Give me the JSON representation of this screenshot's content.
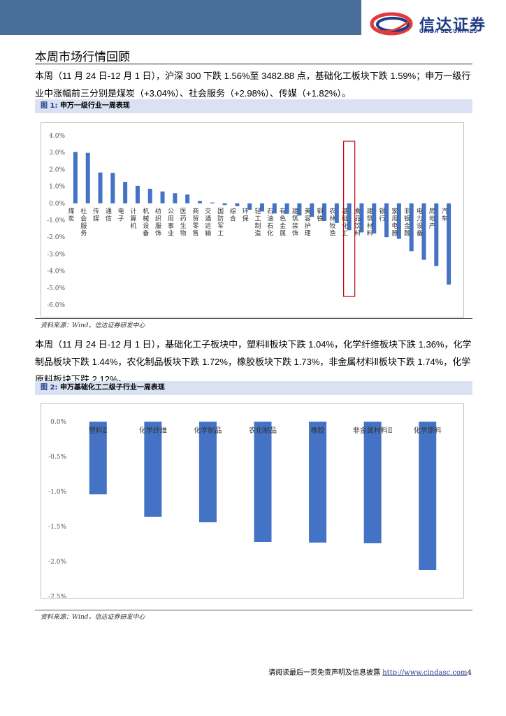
{
  "header": {
    "logo_cn": "信达证券",
    "logo_en": "CINDA SECURITIES",
    "colors": {
      "band": "#4a6e9a",
      "logo_blue": "#1f3b86",
      "logo_red": "#e03a3e"
    }
  },
  "section_title": "本周市场行情回顾",
  "paragraph1": "本周（11 月 24 日-12 月 1 日），沪深 300 下跌 1.56%至 3482.88 点，基础化工板块下跌 1.59%；申万一级行业中涨幅前三分别是煤炭（+3.04%）、社会服务（+2.98%）、传媒（+1.82%）。",
  "figure1": {
    "label": "图 1:",
    "title": "申万一级行业一周表现",
    "source": "资料来源：Wind，信达证券研发中心"
  },
  "paragraph2": "本周（11 月 24 日-12 月 1 日），基础化工子板块中，塑料Ⅱ板块下跌 1.04%，化学纤维板块下跌 1.36%，化学制品板块下跌 1.44%，农化制品板块下跌 1.72%，橡胶板块下跌 1.73%，非金属材料Ⅱ板块下跌 1.74%，化学原料板块下跌 2.12%。",
  "figure2": {
    "label": "图 2:",
    "title": "申万基础化工二级子行业一周表现",
    "source": "资料来源：Wind，信达证券研发中心"
  },
  "footer": {
    "text": "请阅读最后一页免责声明及信息披露",
    "url": "http://www.cindasc.com",
    "page": "4"
  },
  "chart_data": [
    {
      "type": "bar",
      "title": "申万一级行业一周表现",
      "categories": [
        "煤炭",
        "社会服务",
        "传媒",
        "通信",
        "电子",
        "计算机",
        "机械设备",
        "纺织服饰",
        "公用事业",
        "医药生物",
        "商贸零售",
        "交通运输",
        "国防军工",
        "综合",
        "环保",
        "轻工制造",
        "石油石化",
        "有色金属",
        "建筑装饰",
        "美容护理",
        "钢铁",
        "农林牧渔",
        "基础化工",
        "食品饮料",
        "建筑材料",
        "银行",
        "家用电器",
        "非银金融",
        "电力设备",
        "房地产",
        "汽车"
      ],
      "values": [
        3.04,
        2.98,
        1.82,
        1.8,
        1.27,
        1.03,
        0.86,
        0.7,
        0.6,
        0.52,
        0.14,
        0.05,
        -0.1,
        -0.17,
        -0.38,
        -0.48,
        -0.6,
        -0.62,
        -0.72,
        -0.8,
        -1.04,
        -1.16,
        -1.59,
        -1.72,
        -1.78,
        -2.0,
        -2.1,
        -2.83,
        -3.34,
        -3.7,
        -4.8
      ],
      "highlight": "基础化工",
      "ylim": [
        -6.0,
        4.0
      ],
      "ytick_labels": [
        "4.0%",
        "3.0%",
        "2.0%",
        "1.0%",
        "0.0%",
        "-1.0%",
        "-2.0%",
        "-3.0%",
        "-4.0%",
        "-5.0%",
        "-6.0%"
      ],
      "bar_color": "#4472c4",
      "highlight_color": "#c00000"
    },
    {
      "type": "bar",
      "title": "申万基础化工二级子行业一周表现",
      "categories": [
        "塑料Ⅱ",
        "化学纤维",
        "化学制品",
        "农化制品",
        "橡胶",
        "非金属材料Ⅱ",
        "化学原料"
      ],
      "values": [
        -1.04,
        -1.36,
        -1.44,
        -1.72,
        -1.73,
        -1.74,
        -2.12
      ],
      "ylim": [
        -2.5,
        0.0
      ],
      "ytick_labels": [
        "0.0%",
        "-0.5%",
        "-1.0%",
        "-1.5%",
        "-2.0%",
        "-2.5%"
      ],
      "bar_color": "#4472c4"
    }
  ]
}
